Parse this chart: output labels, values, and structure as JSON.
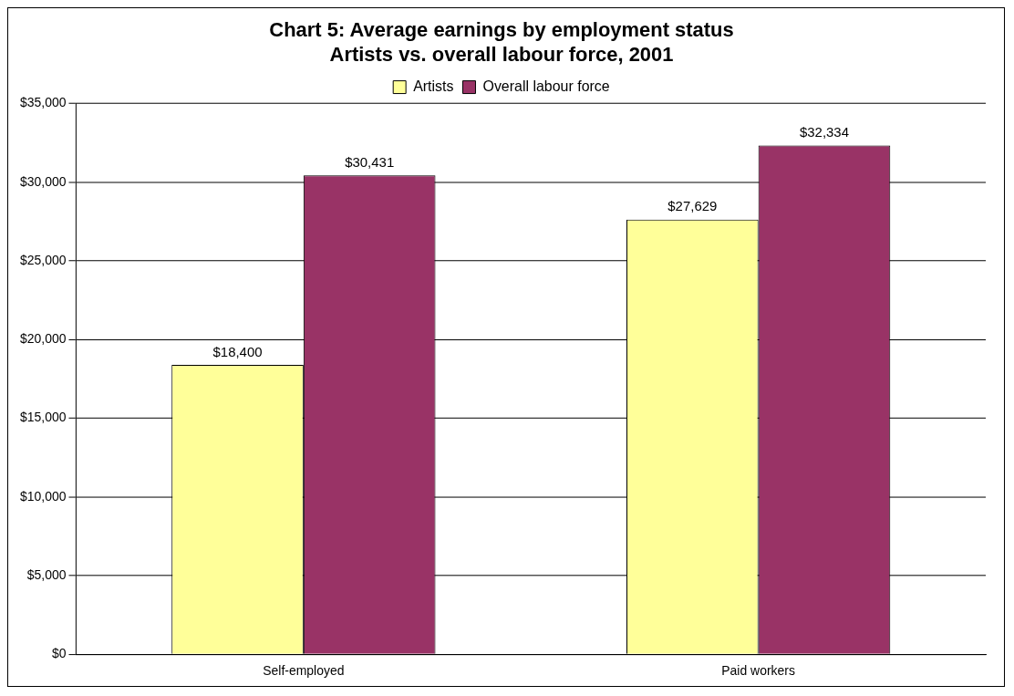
{
  "chart_data": {
    "type": "bar",
    "title": "Chart 5: Average earnings by employment status\nArtists vs. overall labour force, 2001",
    "categories": [
      "Self-employed",
      "Paid workers"
    ],
    "series": [
      {
        "name": "Artists",
        "color": "#ffff99",
        "values": [
          18400,
          27629
        ],
        "value_labels": [
          "$18,400",
          "$27,629"
        ]
      },
      {
        "name": "Overall labour force",
        "color": "#993366",
        "values": [
          30431,
          32334
        ],
        "value_labels": [
          "$30,431",
          "$32,334"
        ]
      }
    ],
    "ylim": [
      0,
      35000
    ],
    "yticks": [
      {
        "value": 0,
        "label": "$0"
      },
      {
        "value": 5000,
        "label": "$5,000"
      },
      {
        "value": 10000,
        "label": "$10,000"
      },
      {
        "value": 15000,
        "label": "$15,000"
      },
      {
        "value": 20000,
        "label": "$20,000"
      },
      {
        "value": 25000,
        "label": "$25,000"
      },
      {
        "value": 30000,
        "label": "$30,000"
      },
      {
        "value": 35000,
        "label": "$35,000"
      }
    ],
    "grid": "y",
    "legend": "top"
  }
}
